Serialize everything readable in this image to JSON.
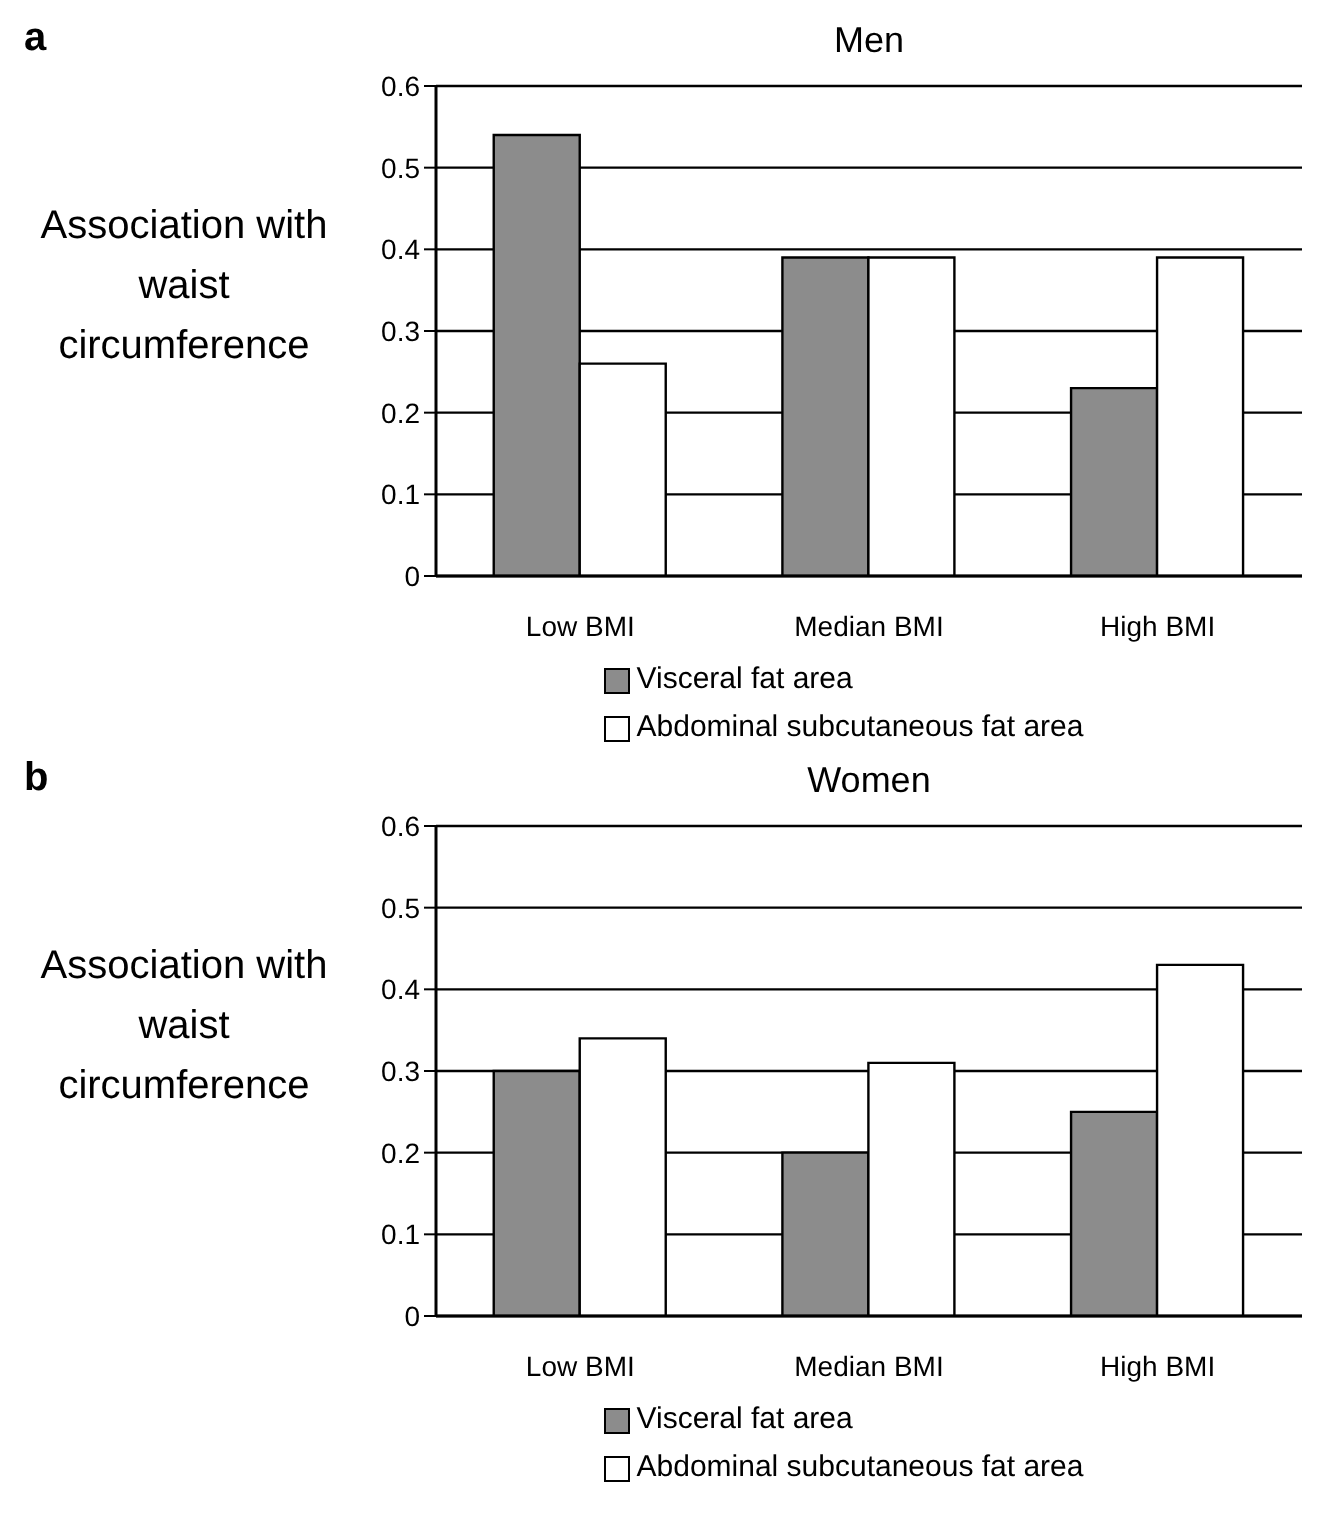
{
  "chart_data": [
    {
      "type": "bar",
      "title": "Men",
      "ylabel": "Association with waist circumference",
      "annotations": [
        "a"
      ],
      "categories": [
        "Low BMI",
        "Median BMI",
        "High BMI"
      ],
      "series": [
        {
          "name": "Visceral fat area",
          "color": "#8c8c8c",
          "values": [
            0.54,
            0.39,
            0.23
          ]
        },
        {
          "name": "Abdominal subcutaneous fat area",
          "color": "#ffffff",
          "values": [
            0.26,
            0.39,
            0.39
          ]
        }
      ],
      "ylim": [
        0,
        0.6
      ],
      "yticks": [
        0,
        0.1,
        0.2,
        0.3,
        0.4,
        0.5,
        0.6
      ],
      "grid": "y",
      "legend": "bottom"
    },
    {
      "type": "bar",
      "title": "Women",
      "ylabel": "Association with waist circumference",
      "annotations": [
        "b"
      ],
      "categories": [
        "Low BMI",
        "Median BMI",
        "High BMI"
      ],
      "series": [
        {
          "name": "Visceral fat area",
          "color": "#8c8c8c",
          "values": [
            0.3,
            0.2,
            0.25
          ]
        },
        {
          "name": "Abdominal subcutaneous fat area",
          "color": "#ffffff",
          "values": [
            0.34,
            0.31,
            0.43
          ]
        }
      ],
      "ylim": [
        0,
        0.6
      ],
      "yticks": [
        0,
        0.1,
        0.2,
        0.3,
        0.4,
        0.5,
        0.6
      ],
      "grid": "y",
      "legend": "bottom"
    }
  ]
}
